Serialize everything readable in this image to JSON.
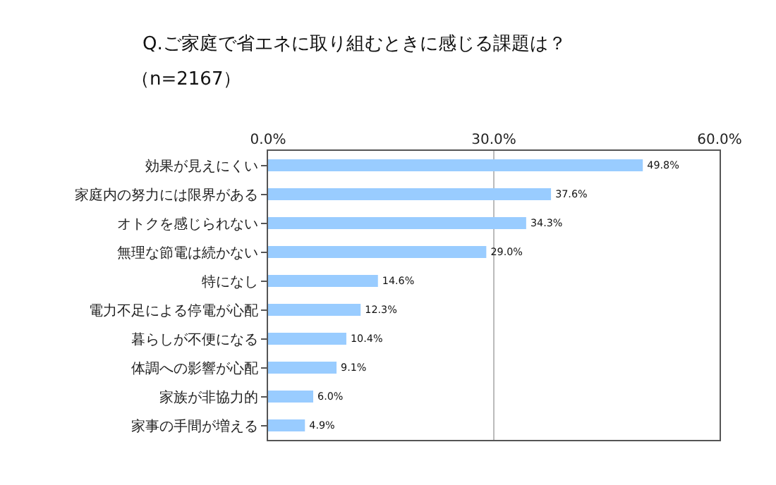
{
  "chart_data": {
    "type": "bar",
    "orientation": "horizontal",
    "title": "Q.ご家庭で省エネに取り組むときに感じる課題は？",
    "subtitle": "（n=2167）",
    "categories": [
      "効果が見えにくい",
      "家庭内の努力には限界がある",
      "オトクを感じられない",
      "無理な節電は続かない",
      "特になし",
      "電力不足による停電が心配",
      "暮らしが不便になる",
      "体調への影響が心配",
      "家族が非協力的",
      "家事の手間が増える"
    ],
    "values": [
      49.8,
      37.6,
      34.3,
      29.0,
      14.6,
      12.3,
      10.4,
      9.1,
      6.0,
      4.9
    ],
    "value_labels": [
      "49.8%",
      "37.6%",
      "34.3%",
      "29.0%",
      "14.6%",
      "12.3%",
      "10.4%",
      "9.1%",
      "6.0%",
      "4.9%"
    ],
    "color": "#99ccff",
    "xlim": [
      0,
      60
    ],
    "xticks": [
      {
        "value": 0,
        "label": "0.0%"
      },
      {
        "value": 30,
        "label": "30.0%"
      },
      {
        "value": 60,
        "label": "60.0%"
      }
    ],
    "grid": "x"
  }
}
